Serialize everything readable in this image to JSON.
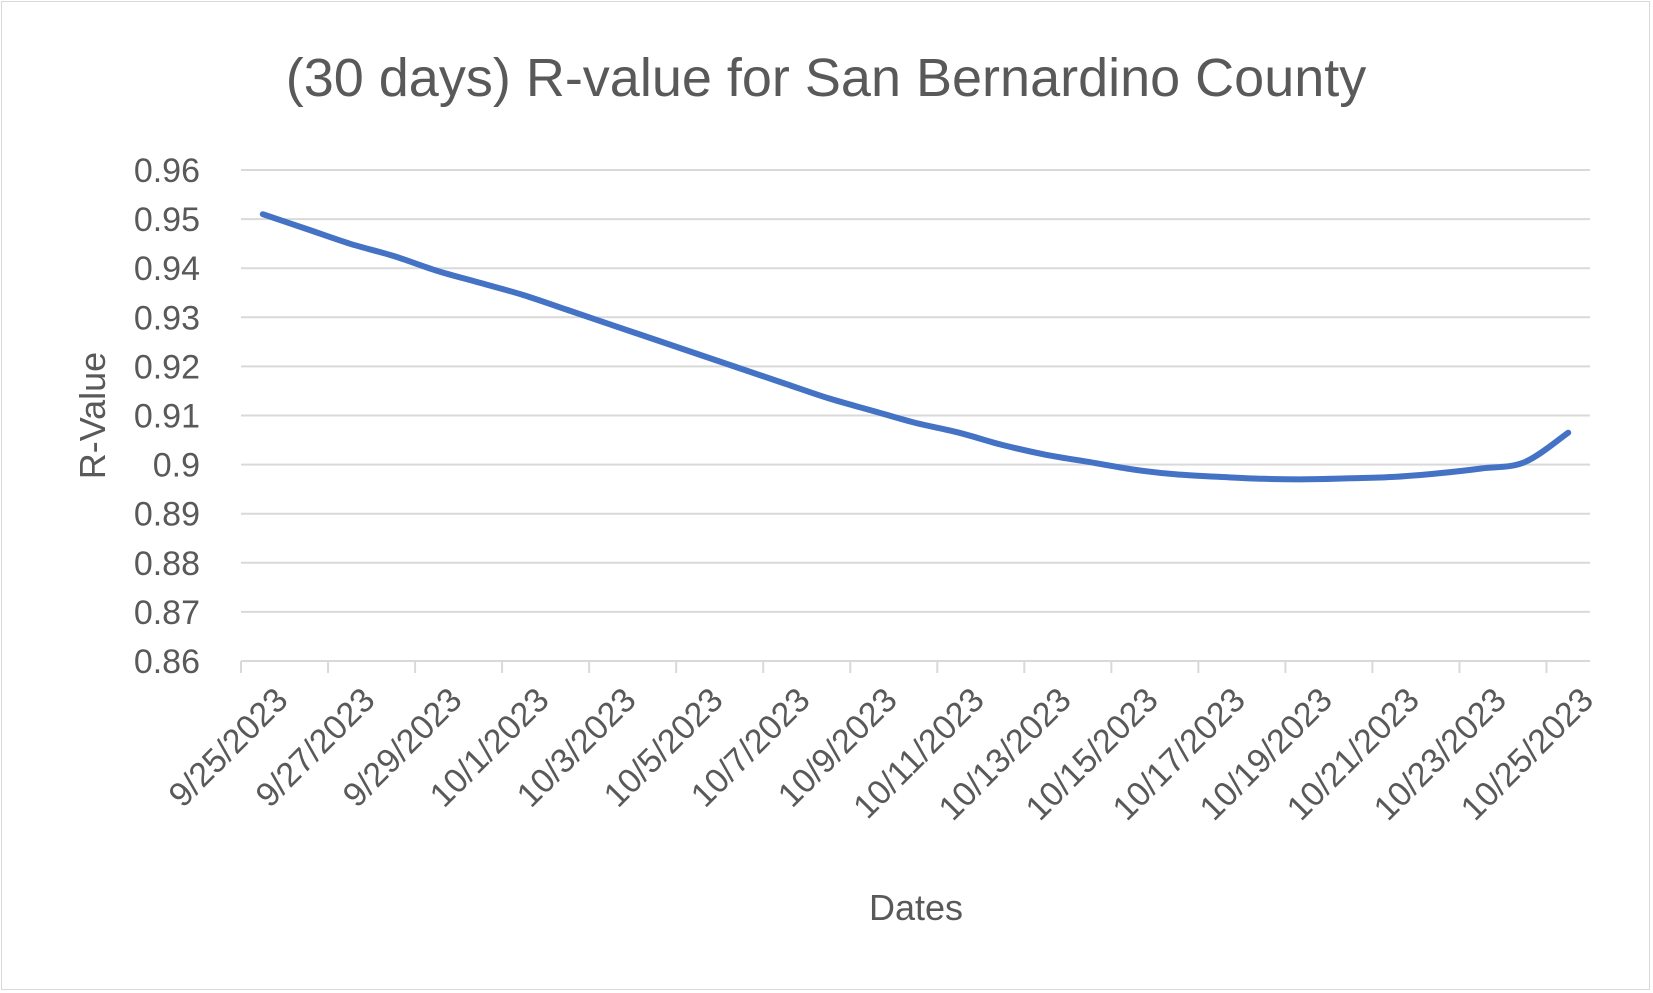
{
  "chart_data": {
    "type": "line",
    "title": "(30 days) R-value for San Bernardino County",
    "xlabel": "Dates",
    "ylabel": "R-Value",
    "ylim": [
      0.86,
      0.96
    ],
    "y_ticks": [
      "0.86",
      "0.87",
      "0.88",
      "0.89",
      "0.9",
      "0.91",
      "0.92",
      "0.93",
      "0.94",
      "0.95",
      "0.96"
    ],
    "grid": true,
    "x": [
      "9/25/2023",
      "9/26/2023",
      "9/27/2023",
      "9/28/2023",
      "9/29/2023",
      "9/30/2023",
      "10/1/2023",
      "10/2/2023",
      "10/3/2023",
      "10/4/2023",
      "10/5/2023",
      "10/6/2023",
      "10/7/2023",
      "10/8/2023",
      "10/9/2023",
      "10/10/2023",
      "10/11/2023",
      "10/12/2023",
      "10/13/2023",
      "10/14/2023",
      "10/15/2023",
      "10/16/2023",
      "10/17/2023",
      "10/18/2023",
      "10/19/2023",
      "10/20/2023",
      "10/21/2023",
      "10/22/2023",
      "10/23/2023",
      "10/24/2023",
      "10/25/2023"
    ],
    "x_tick_labels": [
      "9/25/2023",
      "9/27/2023",
      "9/29/2023",
      "10/1/2023",
      "10/3/2023",
      "10/5/2023",
      "10/7/2023",
      "10/9/2023",
      "10/11/2023",
      "10/13/2023",
      "10/15/2023",
      "10/17/2023",
      "10/19/2023",
      "10/21/2023",
      "10/23/2023",
      "10/25/2023"
    ],
    "series": [
      {
        "color": "#4472c4",
        "values": [
          0.951,
          0.948,
          0.945,
          0.9425,
          0.9395,
          0.937,
          0.9345,
          0.9315,
          0.9285,
          0.9255,
          0.9225,
          0.9195,
          0.9165,
          0.9135,
          0.911,
          0.9085,
          0.9065,
          0.904,
          0.902,
          0.9005,
          0.899,
          0.898,
          0.8975,
          0.8971,
          0.897,
          0.8972,
          0.8975,
          0.8982,
          0.8992,
          0.9005,
          0.9065
        ]
      }
    ]
  }
}
